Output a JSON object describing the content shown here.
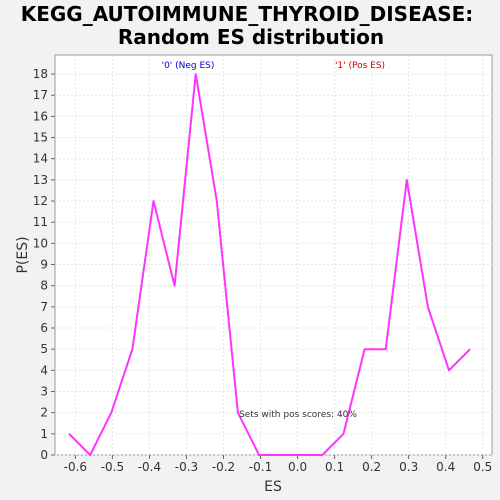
{
  "chart_data": {
    "type": "line",
    "title_line1": "KEGG_AUTOIMMUNE_THYROID_DISEASE:",
    "title_line2": "Random ES distribution",
    "xlabel": "ES",
    "ylabel": "P(ES)",
    "xlim": [
      -0.655,
      0.525
    ],
    "ylim": [
      0,
      18.9
    ],
    "x_ticks": [
      "-0.6",
      "-0.5",
      "-0.4",
      "-0.3",
      "-0.2",
      "-0.1",
      "0.0",
      "0.1",
      "0.2",
      "0.3",
      "0.4",
      "0.5"
    ],
    "x_tick_values": [
      -0.6,
      -0.5,
      -0.4,
      -0.3,
      -0.2,
      -0.1,
      0.0,
      0.1,
      0.2,
      0.3,
      0.4,
      0.5
    ],
    "y_ticks": [
      "0",
      "1",
      "2",
      "3",
      "4",
      "5",
      "6",
      "7",
      "8",
      "9",
      "10",
      "11",
      "12",
      "13",
      "14",
      "15",
      "16",
      "17",
      "18"
    ],
    "y_tick_values": [
      0,
      1,
      2,
      3,
      4,
      5,
      6,
      7,
      8,
      9,
      10,
      11,
      12,
      13,
      14,
      15,
      16,
      17,
      18
    ],
    "grid": true,
    "series": [
      {
        "color": "#ff33ff",
        "x": [
          -0.617,
          -0.56,
          -0.503,
          -0.446,
          -0.389,
          -0.332,
          -0.275,
          -0.218,
          -0.161,
          -0.104,
          -0.047,
          0.01,
          0.067,
          0.124,
          0.181,
          0.238,
          0.295,
          0.352,
          0.409,
          0.466
        ],
        "y": [
          1,
          0,
          2,
          5,
          12,
          8,
          18,
          12,
          2,
          0,
          0,
          0,
          0,
          1,
          5,
          5,
          13,
          7,
          4,
          5
        ]
      }
    ],
    "annotations": {
      "neg_label": "'0' (Neg ES)",
      "neg_color": "#0000cc",
      "pos_label": "'1' (Pos ES)",
      "pos_color": "#cc0000",
      "pos_scores": "Sets with pos scores: 40%"
    }
  }
}
